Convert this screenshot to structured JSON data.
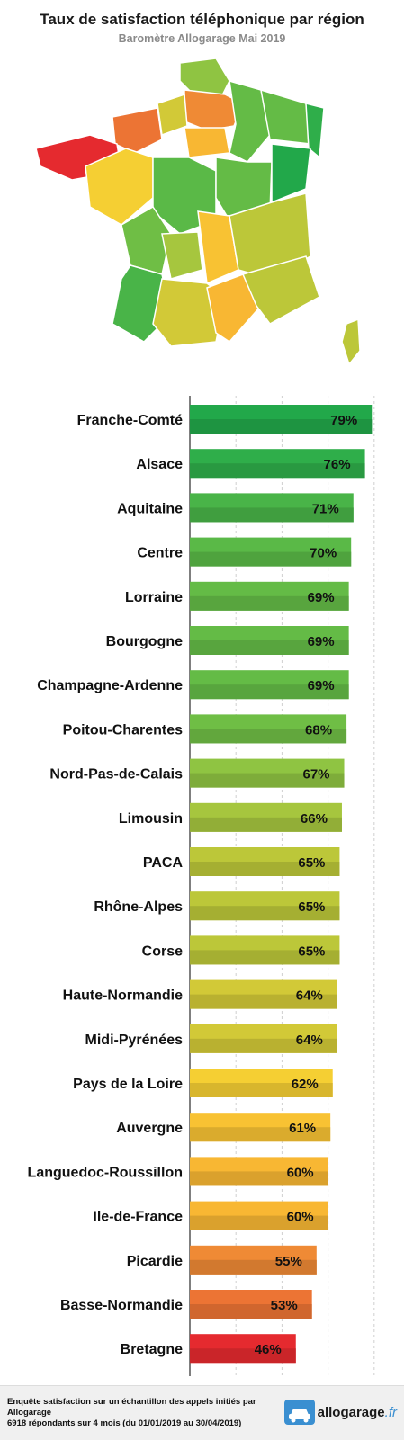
{
  "chart_data": {
    "type": "bar",
    "orientation": "horizontal",
    "title": "Taux de satisfaction téléphonique par région",
    "subtitle": "Baromètre Allogarage Mai 2019",
    "xlim": [
      0,
      80
    ],
    "grid": true,
    "categories": [
      "Franche-Comté",
      "Alsace",
      "Aquitaine",
      "Centre",
      "Lorraine",
      "Bourgogne",
      "Champagne-Ardenne",
      "Poitou-Charentes",
      "Nord-Pas-de-Calais",
      "Limousin",
      "PACA",
      "Rhône-Alpes",
      "Corse",
      "Haute-Normandie",
      "Midi-Pyrénées",
      "Pays de la Loire",
      "Auvergne",
      "Languedoc-Roussillon",
      "Ile-de-France",
      "Picardie",
      "Basse-Normandie",
      "Bretagne"
    ],
    "values": [
      79,
      76,
      71,
      70,
      69,
      69,
      69,
      68,
      67,
      66,
      65,
      65,
      65,
      64,
      64,
      62,
      61,
      60,
      60,
      55,
      53,
      46
    ],
    "labels": [
      "79%",
      "76%",
      "71%",
      "70%",
      "69%",
      "69%",
      "69%",
      "68%",
      "67%",
      "66%",
      "65%",
      "65%",
      "65%",
      "64%",
      "64%",
      "62%",
      "61%",
      "60%",
      "60%",
      "55%",
      "53%",
      "46%"
    ],
    "colors": [
      "#22a84a",
      "#2fae4a",
      "#49b448",
      "#5ab947",
      "#64bb46",
      "#64bb46",
      "#64bb46",
      "#6fbe45",
      "#8fc442",
      "#a6c63e",
      "#bcc739",
      "#bcc739",
      "#bcc739",
      "#d2c937",
      "#d2c937",
      "#f5cf33",
      "#f8c233",
      "#f8b733",
      "#f8b733",
      "#ef8a35",
      "#ec7434",
      "#e52a2f"
    ]
  },
  "footer": {
    "line1": "Enquête satisfaction sur un échantillon des appels initiés par Allogarage",
    "line2": "6918 répondants sur 4 mois (du 01/01/2019 au 30/04/2019)"
  },
  "logo": {
    "name": "allogarage",
    "tld": ".fr",
    "icon": "car-icon"
  }
}
